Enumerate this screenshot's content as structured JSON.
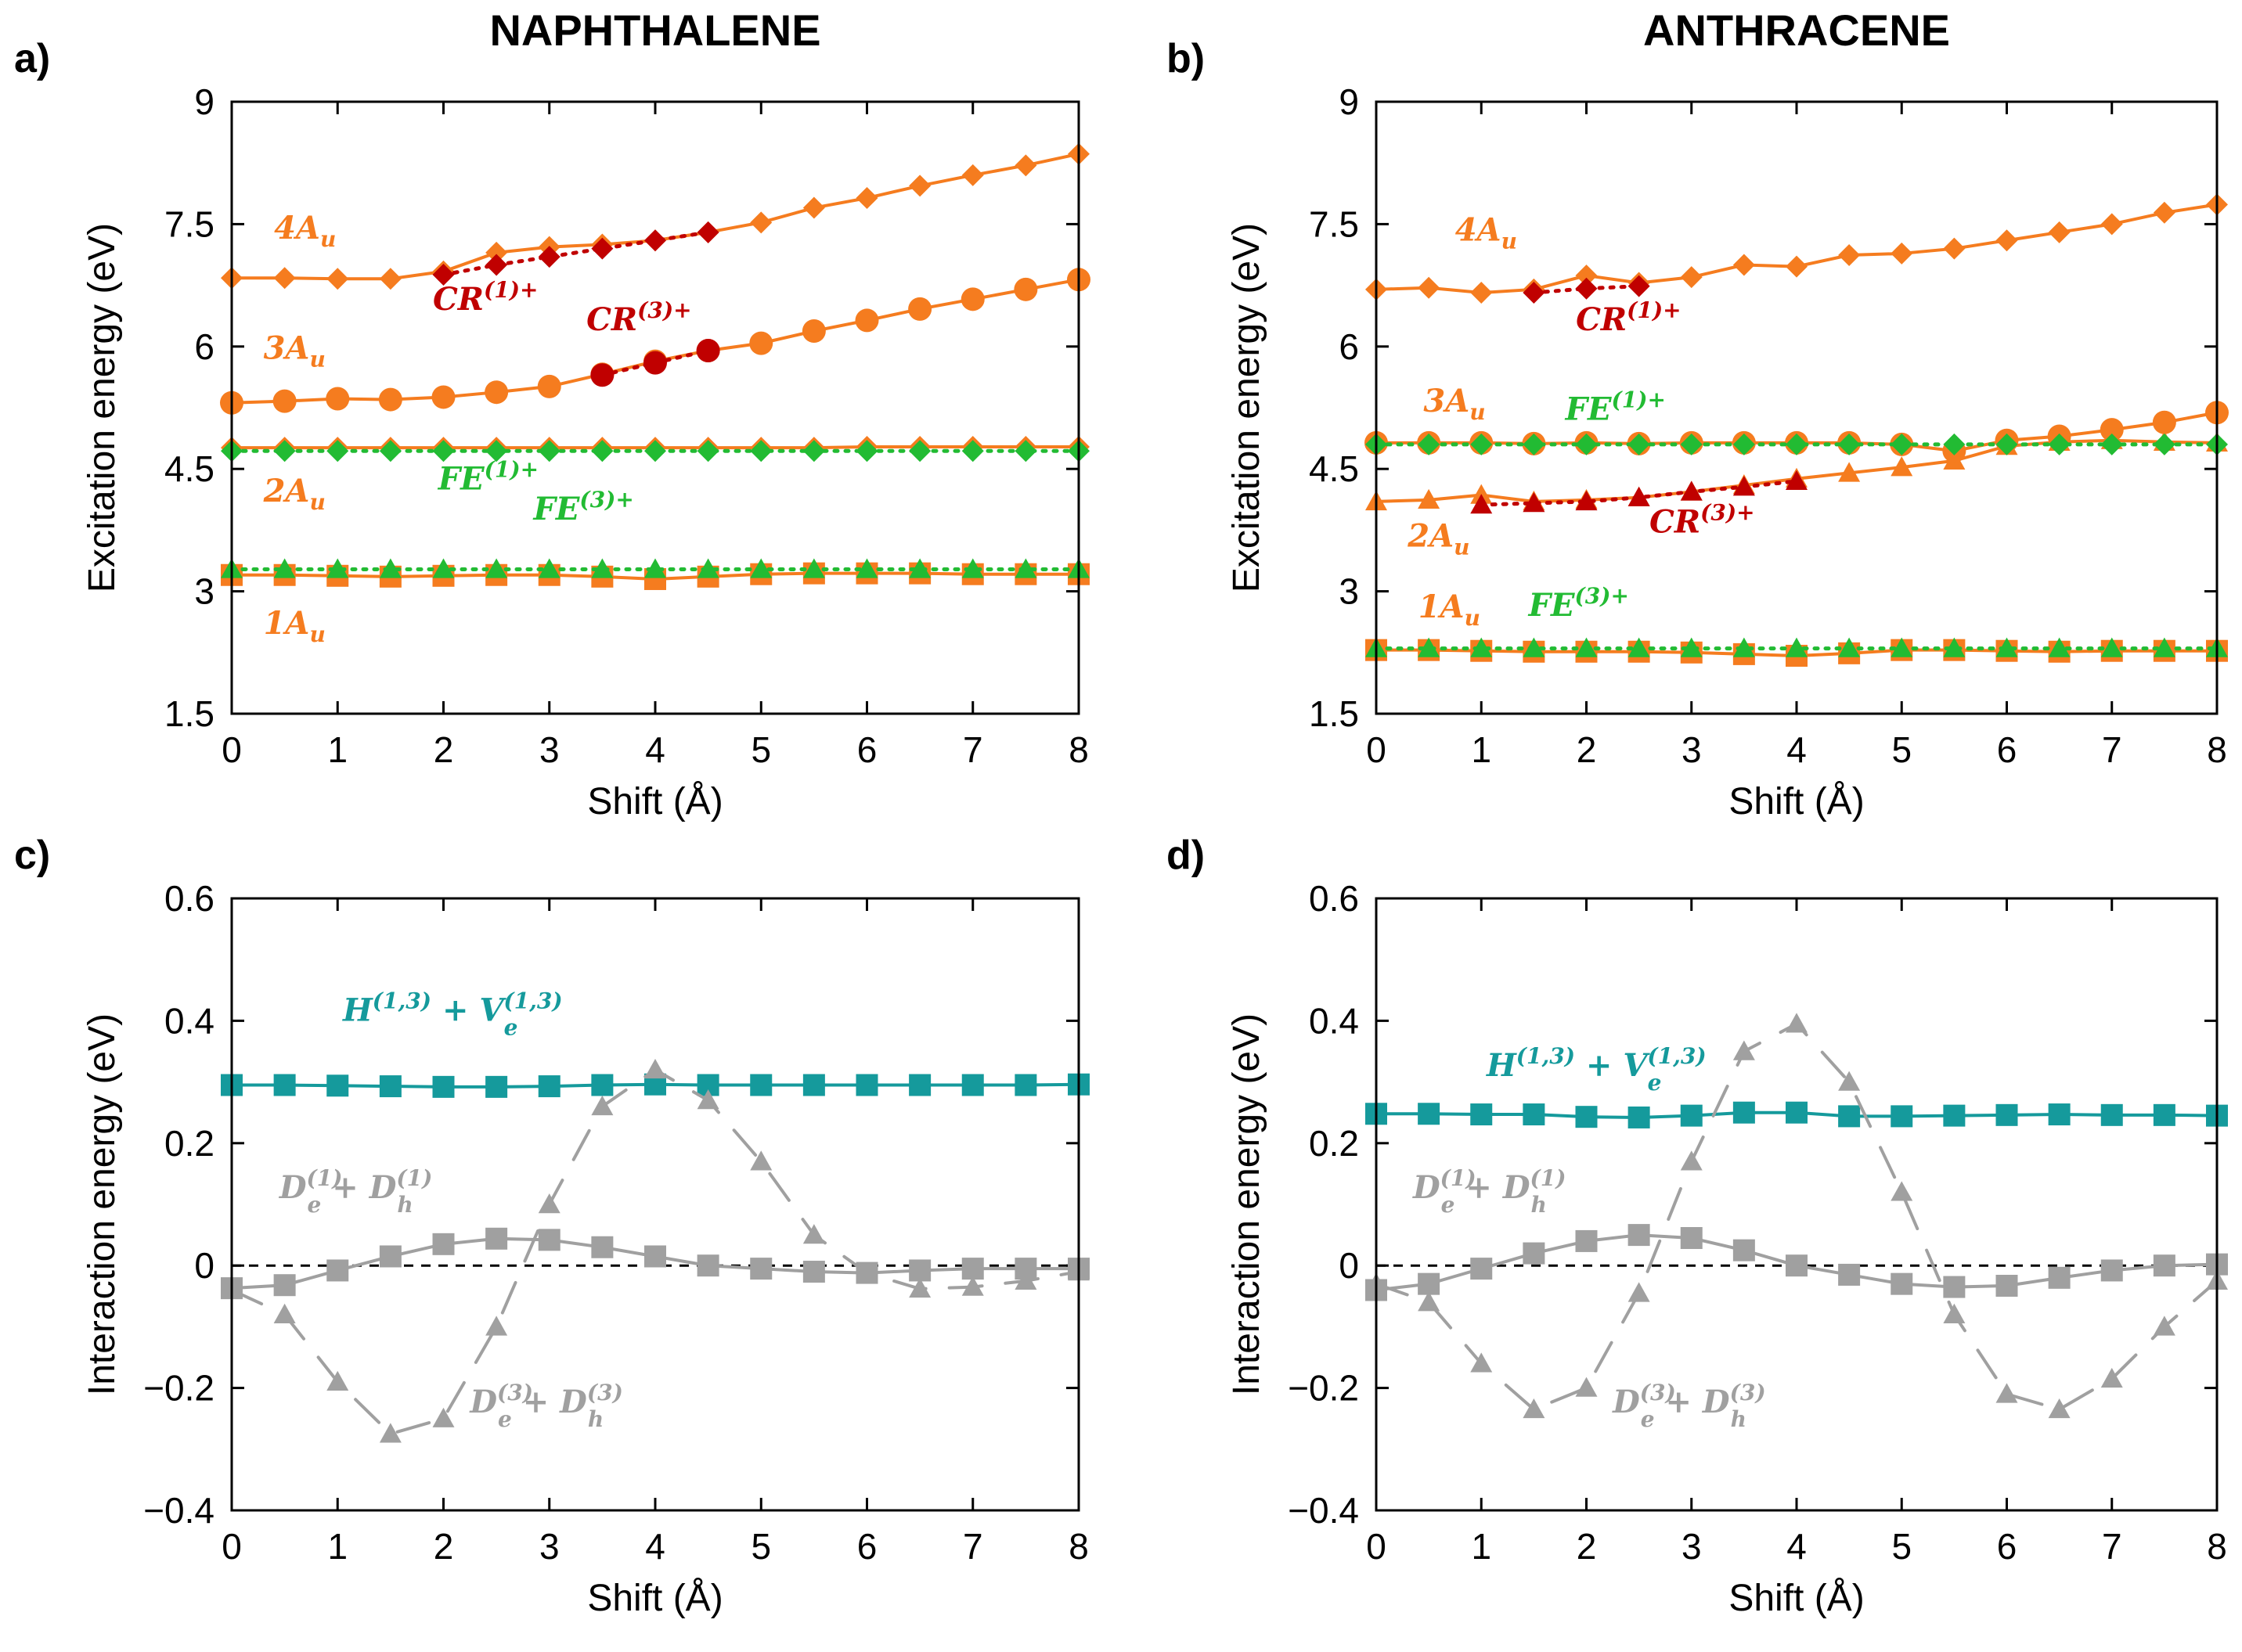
{
  "figure": {
    "colors": {
      "orange": "#f57c1f",
      "red": "#c00000",
      "green": "#22bb33",
      "teal": "#159a9c",
      "gray": "#a0a0a0",
      "black": "#000000"
    }
  },
  "chart_data": [
    {
      "panel": "a)",
      "title": "NAPHTHALENE",
      "type": "line",
      "xlabel": "Shift (Å)",
      "ylabel": "Excitation energy (eV)",
      "xlim": [
        0,
        8
      ],
      "ylim": [
        1.5,
        9
      ],
      "xticks": [
        "0",
        "1",
        "2",
        "3",
        "4",
        "5",
        "6",
        "7",
        "8"
      ],
      "yticks": [
        "1.5",
        "3",
        "4.5",
        "6",
        "7.5",
        "9"
      ],
      "x": [
        0,
        0.5,
        1,
        1.5,
        2,
        2.5,
        3,
        3.5,
        4,
        4.5,
        5,
        5.5,
        6,
        6.5,
        7,
        7.5,
        8
      ],
      "series": [
        {
          "name": "1Au",
          "color": "orange",
          "marker": "square",
          "dash": "solid",
          "values": [
            3.2,
            3.2,
            3.19,
            3.18,
            3.19,
            3.2,
            3.2,
            3.18,
            3.15,
            3.18,
            3.21,
            3.22,
            3.22,
            3.22,
            3.21,
            3.21,
            3.21
          ]
        },
        {
          "name": "2Au",
          "color": "orange",
          "marker": "diamond",
          "dash": "solid",
          "values": [
            4.76,
            4.76,
            4.76,
            4.76,
            4.76,
            4.76,
            4.76,
            4.76,
            4.76,
            4.76,
            4.76,
            4.76,
            4.77,
            4.77,
            4.77,
            4.77,
            4.77
          ]
        },
        {
          "name": "3Au",
          "color": "orange",
          "marker": "circle",
          "dash": "solid",
          "values": [
            5.31,
            5.33,
            5.36,
            5.35,
            5.38,
            5.44,
            5.51,
            5.66,
            5.82,
            5.95,
            6.04,
            6.19,
            6.32,
            6.46,
            6.58,
            6.7,
            6.82
          ]
        },
        {
          "name": "4Au",
          "color": "orange",
          "marker": "diamond",
          "dash": "solid",
          "values": [
            6.84,
            6.84,
            6.83,
            6.83,
            6.92,
            7.15,
            7.22,
            7.25,
            7.3,
            7.4,
            7.52,
            7.7,
            7.82,
            7.97,
            8.1,
            8.22,
            8.36
          ]
        },
        {
          "name": "FE(3)+",
          "color": "green",
          "marker": "triangle",
          "dash": "dotted",
          "values": [
            3.27,
            3.27,
            3.27,
            3.27,
            3.27,
            3.27,
            3.27,
            3.27,
            3.27,
            3.27,
            3.27,
            3.27,
            3.27,
            3.27,
            3.27,
            3.27,
            3.27
          ]
        },
        {
          "name": "FE(1)+",
          "color": "green",
          "marker": "diamond",
          "dash": "dotted",
          "values": [
            4.72,
            4.72,
            4.72,
            4.72,
            4.72,
            4.72,
            4.72,
            4.72,
            4.72,
            4.72,
            4.72,
            4.72,
            4.72,
            4.72,
            4.72,
            4.72,
            4.72
          ]
        },
        {
          "name": "CR(3)+",
          "color": "red",
          "marker": "circle",
          "dash": "dotted",
          "x": [
            3.5,
            4,
            4.5
          ],
          "values": [
            5.65,
            5.8,
            5.95
          ]
        },
        {
          "name": "CR(1)+",
          "color": "red",
          "marker": "diamond",
          "dash": "dotted",
          "x": [
            2,
            2.5,
            3,
            3.5,
            4,
            4.5
          ],
          "values": [
            6.88,
            7.0,
            7.1,
            7.2,
            7.3,
            7.4
          ]
        }
      ],
      "annotations": [
        {
          "text": "4A",
          "sub": "u",
          "color": "orange",
          "x": 0.4,
          "y": 7.32
        },
        {
          "text": "3A",
          "sub": "u",
          "color": "orange",
          "x": 0.3,
          "y": 5.85
        },
        {
          "text": "2A",
          "sub": "u",
          "color": "orange",
          "x": 0.3,
          "y": 4.1
        },
        {
          "text": "1A",
          "sub": "u",
          "color": "orange",
          "x": 0.3,
          "y": 2.48
        },
        {
          "text": "CR",
          "sup": "(1)+",
          "color": "red",
          "x": 1.9,
          "y": 6.45
        },
        {
          "text": "CR",
          "sup": "(3)+",
          "color": "red",
          "x": 3.35,
          "y": 6.2
        },
        {
          "text": "FE",
          "sup": "(1)+",
          "color": "green",
          "x": 1.95,
          "y": 4.25
        },
        {
          "text": "FE",
          "sup": "(3)+",
          "color": "green",
          "x": 2.85,
          "y": 3.88
        }
      ],
      "zero_line": false
    },
    {
      "panel": "b)",
      "title": "ANTHRACENE",
      "type": "line",
      "xlabel": "Shift (Å)",
      "ylabel": "Excitation energy (eV)",
      "xlim": [
        0,
        8
      ],
      "ylim": [
        1.5,
        9
      ],
      "xticks": [
        "0",
        "1",
        "2",
        "3",
        "4",
        "5",
        "6",
        "7",
        "8"
      ],
      "yticks": [
        "1.5",
        "3",
        "4.5",
        "6",
        "7.5",
        "9"
      ],
      "x": [
        0,
        0.5,
        1,
        1.5,
        2,
        2.5,
        3,
        3.5,
        4,
        4.5,
        5,
        5.5,
        6,
        6.5,
        7,
        7.5,
        8
      ],
      "series": [
        {
          "name": "1Au",
          "color": "orange",
          "marker": "square",
          "dash": "solid",
          "values": [
            2.28,
            2.28,
            2.27,
            2.26,
            2.26,
            2.26,
            2.25,
            2.23,
            2.21,
            2.24,
            2.28,
            2.28,
            2.27,
            2.26,
            2.27,
            2.27,
            2.27
          ]
        },
        {
          "name": "2Au",
          "color": "orange",
          "marker": "triangle",
          "dash": "solid",
          "values": [
            4.1,
            4.12,
            4.18,
            4.1,
            4.12,
            4.15,
            4.22,
            4.3,
            4.38,
            4.45,
            4.52,
            4.6,
            4.78,
            4.83,
            4.85,
            4.83,
            4.82
          ]
        },
        {
          "name": "3Au",
          "color": "orange",
          "marker": "circle",
          "dash": "solid",
          "values": [
            4.82,
            4.82,
            4.82,
            4.81,
            4.82,
            4.81,
            4.82,
            4.82,
            4.82,
            4.82,
            4.8,
            4.72,
            4.85,
            4.9,
            4.98,
            5.07,
            5.19
          ]
        },
        {
          "name": "4Au",
          "color": "orange",
          "marker": "diamond",
          "dash": "solid",
          "values": [
            6.7,
            6.72,
            6.66,
            6.7,
            6.87,
            6.78,
            6.85,
            7.0,
            6.98,
            7.12,
            7.14,
            7.2,
            7.3,
            7.4,
            7.5,
            7.64,
            7.74
          ]
        },
        {
          "name": "FE(3)+",
          "color": "green",
          "marker": "triangle",
          "dash": "dotted",
          "values": [
            2.3,
            2.3,
            2.3,
            2.3,
            2.3,
            2.3,
            2.3,
            2.3,
            2.3,
            2.3,
            2.3,
            2.3,
            2.3,
            2.3,
            2.3,
            2.3,
            2.3
          ]
        },
        {
          "name": "FE(1)+",
          "color": "green",
          "marker": "diamond",
          "dash": "dotted",
          "values": [
            4.8,
            4.8,
            4.8,
            4.8,
            4.8,
            4.8,
            4.8,
            4.8,
            4.8,
            4.8,
            4.8,
            4.8,
            4.8,
            4.8,
            4.8,
            4.8,
            4.8
          ]
        },
        {
          "name": "CR(3)+",
          "color": "red",
          "marker": "triangle",
          "dash": "dotted",
          "x": [
            1,
            1.5,
            2,
            2.5,
            3,
            3.5,
            4
          ],
          "values": [
            4.06,
            4.08,
            4.1,
            4.15,
            4.22,
            4.28,
            4.35
          ]
        },
        {
          "name": "CR(1)+",
          "color": "red",
          "marker": "diamond",
          "dash": "dotted",
          "x": [
            1.5,
            2,
            2.5
          ],
          "values": [
            6.66,
            6.71,
            6.74
          ]
        }
      ],
      "annotations": [
        {
          "text": "4A",
          "sub": "u",
          "color": "orange",
          "x": 0.75,
          "y": 7.3
        },
        {
          "text": "3A",
          "sub": "u",
          "color": "orange",
          "x": 0.45,
          "y": 5.2
        },
        {
          "text": "2A",
          "sub": "u",
          "color": "orange",
          "x": 0.3,
          "y": 3.55
        },
        {
          "text": "1A",
          "sub": "u",
          "color": "orange",
          "x": 0.4,
          "y": 2.68
        },
        {
          "text": "CR",
          "sup": "(1)+",
          "color": "red",
          "x": 1.9,
          "y": 6.2
        },
        {
          "text": "CR",
          "sup": "(3)+",
          "color": "red",
          "x": 2.6,
          "y": 3.72
        },
        {
          "text": "FE",
          "sup": "(1)+",
          "color": "green",
          "x": 1.8,
          "y": 5.1
        },
        {
          "text": "FE",
          "sup": "(3)+",
          "color": "green",
          "x": 1.45,
          "y": 2.7
        }
      ],
      "zero_line": false
    },
    {
      "panel": "c)",
      "title": "",
      "type": "line",
      "xlabel": "Shift (Å)",
      "ylabel": "Interaction energy (eV)",
      "xlim": [
        0,
        8
      ],
      "ylim": [
        -0.4,
        0.6
      ],
      "xticks": [
        "0",
        "1",
        "2",
        "3",
        "4",
        "5",
        "6",
        "7",
        "8"
      ],
      "yticks": [
        "−0.4",
        "−0.2",
        "0",
        "0.2",
        "0.4",
        "0.6"
      ],
      "x": [
        0,
        0.5,
        1,
        1.5,
        2,
        2.5,
        3,
        3.5,
        4,
        4.5,
        5,
        5.5,
        6,
        6.5,
        7,
        7.5,
        8
      ],
      "series": [
        {
          "name": "H(1,3)+Ve(1,3)",
          "color": "teal",
          "marker": "square",
          "dash": "solid",
          "values": [
            0.295,
            0.295,
            0.294,
            0.293,
            0.292,
            0.292,
            0.293,
            0.295,
            0.296,
            0.295,
            0.295,
            0.295,
            0.295,
            0.295,
            0.295,
            0.295,
            0.296
          ]
        },
        {
          "name": "De(1)+Dh(1)",
          "color": "gray",
          "marker": "square",
          "dash": "solid",
          "values": [
            -0.037,
            -0.032,
            -0.008,
            0.015,
            0.035,
            0.044,
            0.042,
            0.03,
            0.015,
            0.0,
            -0.005,
            -0.01,
            -0.012,
            -0.008,
            -0.005,
            -0.005,
            -0.005
          ]
        },
        {
          "name": "De(3)+Dh(3)",
          "color": "gray",
          "marker": "triangle",
          "dash": "dashed",
          "values": [
            -0.04,
            -0.08,
            -0.19,
            -0.275,
            -0.25,
            -0.1,
            0.1,
            0.26,
            0.32,
            0.27,
            0.17,
            0.05,
            -0.012,
            -0.038,
            -0.035,
            -0.025,
            -0.01
          ]
        }
      ],
      "annotations": [
        {
          "text": "H",
          "sup": "(1,3)",
          "mid": " + V",
          "sup2": "(1,3)",
          "sub2": "e",
          "color": "teal",
          "x": 1.05,
          "y": 0.4
        },
        {
          "text": "D",
          "sup": "(1)",
          "sub": "e",
          "mid": " + D",
          "sup2": "(1)",
          "sub2": "h",
          "color": "gray",
          "x": 0.45,
          "y": 0.11
        },
        {
          "text": "D",
          "sup": "(3)",
          "sub": "e",
          "mid": " + D",
          "sup2": "(3)",
          "sub2": "h",
          "color": "gray",
          "x": 2.25,
          "y": -0.24
        }
      ],
      "zero_line": true
    },
    {
      "panel": "d)",
      "title": "",
      "type": "line",
      "xlabel": "Shift (Å)",
      "ylabel": "Interaction energy (eV)",
      "xlim": [
        0,
        8
      ],
      "ylim": [
        -0.4,
        0.6
      ],
      "xticks": [
        "0",
        "1",
        "2",
        "3",
        "4",
        "5",
        "6",
        "7",
        "8"
      ],
      "yticks": [
        "−0.4",
        "−0.2",
        "0",
        "0.2",
        "0.4",
        "0.6"
      ],
      "x": [
        0,
        0.5,
        1,
        1.5,
        2,
        2.5,
        3,
        3.5,
        4,
        4.5,
        5,
        5.5,
        6,
        6.5,
        7,
        7.5,
        8
      ],
      "series": [
        {
          "name": "H(1,3)+Ve(1,3)",
          "color": "teal",
          "marker": "square",
          "dash": "solid",
          "values": [
            0.248,
            0.248,
            0.247,
            0.247,
            0.243,
            0.242,
            0.245,
            0.25,
            0.25,
            0.244,
            0.244,
            0.245,
            0.246,
            0.247,
            0.246,
            0.246,
            0.245
          ]
        },
        {
          "name": "De(1)+Dh(1)",
          "color": "gray",
          "marker": "square",
          "dash": "solid",
          "values": [
            -0.04,
            -0.03,
            -0.005,
            0.02,
            0.04,
            0.05,
            0.045,
            0.025,
            0.0,
            -0.015,
            -0.03,
            -0.035,
            -0.033,
            -0.02,
            -0.008,
            0.0,
            0.002
          ]
        },
        {
          "name": "De(3)+Dh(3)",
          "color": "gray",
          "marker": "triangle",
          "dash": "dashed",
          "values": [
            -0.03,
            -0.06,
            -0.16,
            -0.235,
            -0.2,
            -0.045,
            0.17,
            0.35,
            0.395,
            0.3,
            0.12,
            -0.08,
            -0.21,
            -0.235,
            -0.185,
            -0.1,
            -0.025
          ]
        }
      ],
      "annotations": [
        {
          "text": "H",
          "sup": "(1,3)",
          "mid": " + V",
          "sup2": "(1,3)",
          "sub2": "e",
          "color": "teal",
          "x": 1.05,
          "y": 0.31
        },
        {
          "text": "D",
          "sup": "(1)",
          "sub": "e",
          "mid": " + D",
          "sup2": "(1)",
          "sub2": "h",
          "color": "gray",
          "x": 0.35,
          "y": 0.11
        },
        {
          "text": "D",
          "sup": "(3)",
          "sub": "e",
          "mid": " + D",
          "sup2": "(3)",
          "sub2": "h",
          "color": "gray",
          "x": 2.25,
          "y": -0.24
        }
      ],
      "zero_line": true
    }
  ]
}
